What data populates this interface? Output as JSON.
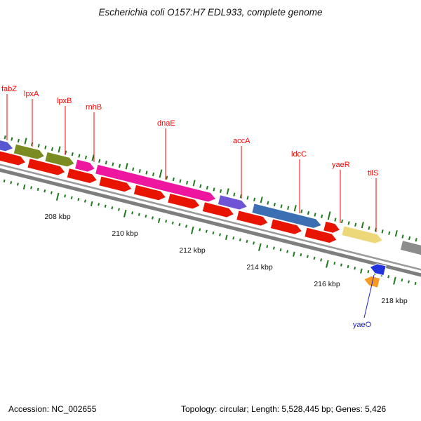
{
  "title": "Escherichia coli O157:H7 EDL933, complete genome",
  "genes": {
    "fabZ": {
      "label": "fabZ"
    },
    "lpxA": {
      "label": "lpxA"
    },
    "lpxB": {
      "label": "lpxB"
    },
    "rnhB": {
      "label": "rnhB"
    },
    "dnaE": {
      "label": "dnaE"
    },
    "accA": {
      "label": "accA"
    },
    "ldcC": {
      "label": "ldcC"
    },
    "yaeR": {
      "label": "yaeR"
    },
    "tilS": {
      "label": "tilS"
    },
    "yaeO": {
      "label": "yaeO"
    }
  },
  "ruler": {
    "labels": [
      "208 kbp",
      "210 kbp",
      "212 kbp",
      "214 kbp",
      "216 kbp",
      "218 kbp"
    ]
  },
  "status": {
    "accession": "Accession: NC_002655",
    "topology": "Topology: circular; Length: 5,528,445 bp; Genes: 5,426"
  },
  "palette": {
    "red": "#e81400",
    "olive": "#7a8b21",
    "magenta": "#ee169e",
    "purple": "#6f55d6",
    "slate": "#5558d0",
    "blue": "#3c6eb4",
    "yellow": "#ecd878",
    "gray_gene": "#8c8c8c",
    "deep_blue": "#2233dd",
    "orange": "#f59a23",
    "tick_green": "#1f7a1f",
    "backbone": "#7e7e7e",
    "backbone_thin": "#9a9a9a",
    "label_red": "#ff0000",
    "label_blue": "#2222cc"
  }
}
